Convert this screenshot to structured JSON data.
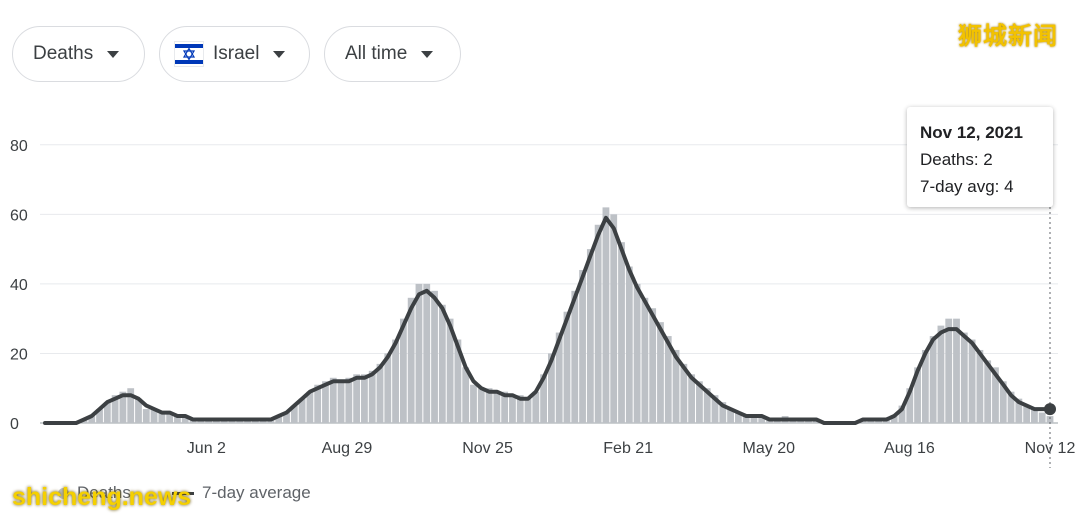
{
  "filters": {
    "metric": "Deaths",
    "region": "Israel",
    "range": "All time"
  },
  "watermarks": {
    "top": "狮城新闻",
    "bottom": "shicheng.news"
  },
  "tooltip": {
    "date": "Nov 12, 2021",
    "deaths_text": "Deaths: 2",
    "avg_text": "7-day avg: 4"
  },
  "legend": {
    "bars": "Deaths",
    "line": "7-day average"
  },
  "colors": {
    "bar": "#bdc1c6",
    "line": "#3c4043",
    "grid": "#e8eaed",
    "flag_blue": "#0038b8"
  },
  "chart_data": {
    "type": "bar",
    "title": "",
    "xlabel": "",
    "ylabel": "",
    "ylim": [
      0,
      90
    ],
    "yticks": [
      0,
      20,
      40,
      60,
      80
    ],
    "x_start": "2020-02-22",
    "x_end": "2021-11-12",
    "xtick_labels": [
      {
        "label": "Jun 2",
        "day": 101
      },
      {
        "label": "Aug 29",
        "day": 189
      },
      {
        "label": "Nov 25",
        "day": 277
      },
      {
        "label": "Feb 21",
        "day": 365
      },
      {
        "label": "May 20",
        "day": 453
      },
      {
        "label": "Aug 16",
        "day": 541
      },
      {
        "label": "Nov 12",
        "day": 629
      }
    ],
    "series": [
      {
        "name": "Deaths",
        "kind": "bar",
        "note": "Daily values; 5-day bins approximated from the chart",
        "values": [
          0,
          0,
          0,
          0,
          0,
          1,
          2,
          4,
          6,
          8,
          9,
          10,
          7,
          4,
          4,
          3,
          3,
          2,
          2,
          1,
          1,
          1,
          1,
          1,
          1,
          1,
          1,
          1,
          1,
          1,
          2,
          3,
          5,
          7,
          9,
          11,
          12,
          13,
          12,
          13,
          14,
          14,
          15,
          17,
          20,
          24,
          30,
          36,
          40,
          40,
          38,
          34,
          30,
          24,
          16,
          11,
          10,
          10,
          9,
          9,
          8,
          8,
          7,
          9,
          14,
          20,
          26,
          32,
          38,
          44,
          50,
          57,
          62,
          60,
          52,
          45,
          40,
          36,
          33,
          29,
          25,
          21,
          17,
          14,
          12,
          10,
          8,
          6,
          4,
          3,
          2,
          2,
          2,
          1,
          1,
          2,
          1,
          1,
          1,
          1,
          0,
          0,
          0,
          0,
          0,
          1,
          1,
          1,
          1,
          2,
          5,
          10,
          16,
          21,
          25,
          28,
          30,
          30,
          26,
          24,
          21,
          18,
          16,
          12,
          9,
          7,
          5,
          4,
          3,
          2
        ]
      },
      {
        "name": "7-day average",
        "kind": "line",
        "note": "Smoothed average traced from the chart; last value is 4",
        "values": [
          0,
          0,
          0,
          0,
          0,
          1,
          2,
          4,
          6,
          7,
          8,
          8,
          7,
          5,
          4,
          3,
          3,
          2,
          2,
          1,
          1,
          1,
          1,
          1,
          1,
          1,
          1,
          1,
          1,
          1,
          2,
          3,
          5,
          7,
          9,
          10,
          11,
          12,
          12,
          12,
          13,
          13,
          14,
          16,
          19,
          23,
          28,
          33,
          37,
          38,
          36,
          33,
          28,
          22,
          16,
          12,
          10,
          9,
          9,
          8,
          8,
          7,
          7,
          9,
          13,
          18,
          24,
          30,
          36,
          42,
          48,
          54,
          59,
          56,
          50,
          44,
          39,
          35,
          31,
          27,
          23,
          19,
          16,
          13,
          11,
          9,
          7,
          5,
          4,
          3,
          2,
          2,
          2,
          1,
          1,
          1,
          1,
          1,
          1,
          1,
          0,
          0,
          0,
          0,
          0,
          1,
          1,
          1,
          1,
          2,
          4,
          9,
          15,
          20,
          24,
          26,
          27,
          27,
          25,
          23,
          20,
          17,
          14,
          11,
          8,
          6,
          5,
          4,
          4,
          4
        ]
      }
    ],
    "highlight": {
      "date": "Nov 12, 2021",
      "deaths": 2,
      "avg": 4
    }
  }
}
